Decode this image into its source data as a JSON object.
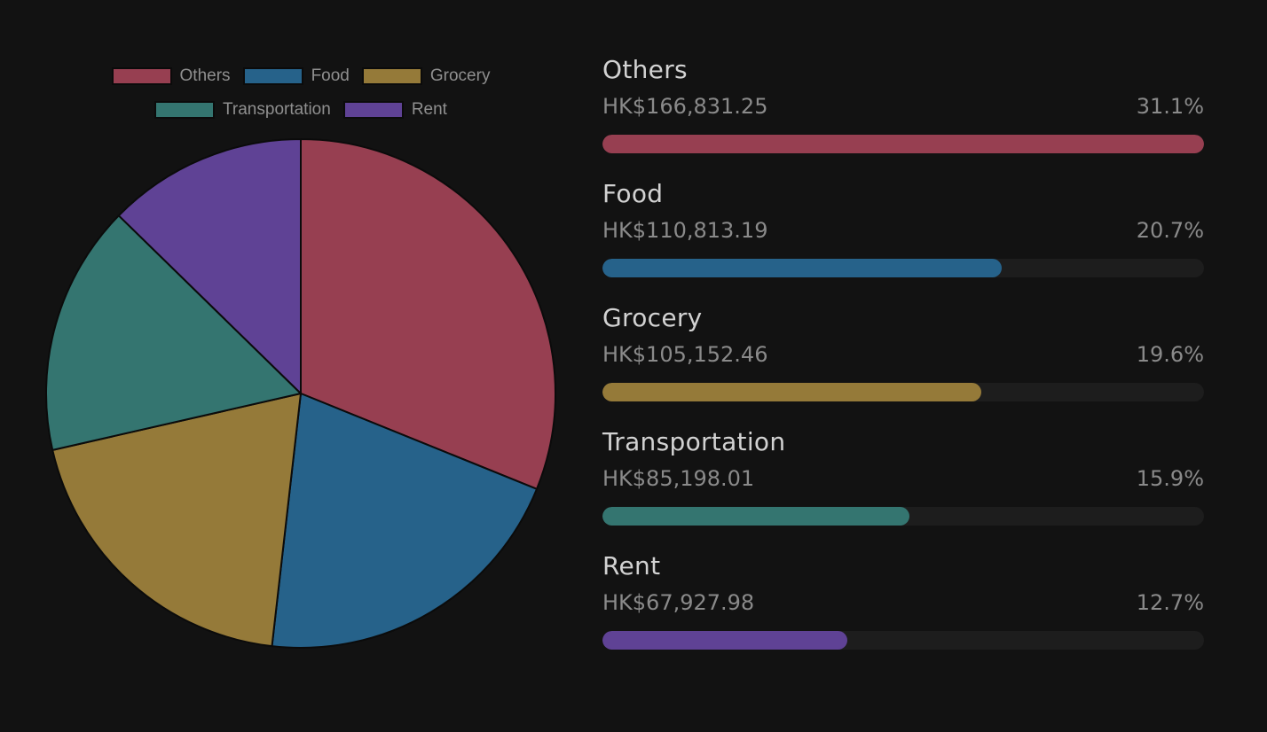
{
  "chart_data": {
    "type": "pie",
    "legend_position": "top",
    "currency": "HK$",
    "slices": [
      {
        "label": "Others",
        "value": 166831.25,
        "amount": "HK$166,831.25",
        "percent": "31.1%",
        "color": "#973f51"
      },
      {
        "label": "Food",
        "value": 110813.19,
        "amount": "HK$110,813.19",
        "percent": "20.7%",
        "color": "#26628a"
      },
      {
        "label": "Grocery",
        "value": 105152.46,
        "amount": "HK$105,152.46",
        "percent": "19.6%",
        "color": "#957a39"
      },
      {
        "label": "Transportation",
        "value": 85198.01,
        "amount": "HK$85,198.01",
        "percent": "15.9%",
        "color": "#347570"
      },
      {
        "label": "Rent",
        "value": 67927.98,
        "amount": "HK$67,927.98",
        "percent": "12.7%",
        "color": "#5f4295"
      }
    ]
  },
  "colors": {
    "background": "#121212",
    "bar_track": "#1d1d1d",
    "slice_border": "#0b0b0b"
  }
}
